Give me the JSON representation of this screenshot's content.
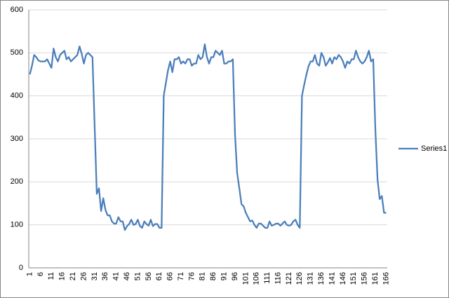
{
  "chart_data": {
    "type": "line",
    "categories": [
      1,
      null,
      null,
      null,
      null,
      6,
      null,
      null,
      null,
      null,
      11,
      null,
      null,
      null,
      null,
      16,
      null,
      null,
      null,
      null,
      21,
      null,
      null,
      null,
      null,
      26,
      null,
      null,
      null,
      null,
      31,
      null,
      null,
      null,
      null,
      36,
      null,
      null,
      null,
      null,
      41,
      null,
      null,
      null,
      null,
      46,
      null,
      null,
      null,
      null,
      51,
      null,
      null,
      null,
      null,
      56,
      null,
      null,
      null,
      null,
      61,
      null,
      null,
      null,
      null,
      66,
      null,
      null,
      null,
      null,
      71,
      null,
      null,
      null,
      null,
      76,
      null,
      null,
      null,
      null,
      81,
      null,
      null,
      null,
      null,
      86,
      null,
      null,
      null,
      null,
      91,
      null,
      null,
      null,
      null,
      96,
      null,
      null,
      null,
      null,
      101,
      null,
      null,
      null,
      null,
      106,
      null,
      null,
      null,
      null,
      111,
      null,
      null,
      null,
      null,
      116,
      null,
      null,
      null,
      null,
      121,
      null,
      null,
      null,
      null,
      126,
      null,
      null,
      null,
      null,
      131,
      null,
      null,
      null,
      null,
      136,
      null,
      null,
      null,
      null,
      141,
      null,
      null,
      null,
      null,
      146,
      null,
      null,
      null,
      null,
      151,
      null,
      null,
      null,
      null,
      156,
      null,
      null,
      null,
      null,
      161,
      null,
      null,
      null,
      null,
      166
    ],
    "series": [
      {
        "name": "Series1",
        "color": "#4a7ebb",
        "values": [
          450,
          470,
          495,
          490,
          482,
          480,
          480,
          480,
          485,
          475,
          465,
          510,
          490,
          480,
          495,
          500,
          505,
          485,
          490,
          480,
          485,
          490,
          495,
          515,
          498,
          475,
          495,
          500,
          495,
          490,
          330,
          172,
          185,
          132,
          162,
          135,
          122,
          122,
          108,
          103,
          103,
          118,
          108,
          108,
          88,
          97,
          102,
          112,
          100,
          102,
          112,
          97,
          93,
          108,
          102,
          98,
          112,
          97,
          102,
          102,
          93,
          93,
          400,
          430,
          460,
          480,
          455,
          485,
          485,
          490,
          475,
          480,
          475,
          485,
          485,
          470,
          475,
          475,
          495,
          485,
          490,
          520,
          490,
          475,
          490,
          490,
          505,
          500,
          495,
          505,
          475,
          475,
          480,
          480,
          485,
          310,
          220,
          185,
          148,
          143,
          128,
          118,
          108,
          110,
          100,
          93,
          103,
          103,
          98,
          93,
          93,
          108,
          98,
          100,
          103,
          103,
          98,
          103,
          108,
          100,
          98,
          100,
          108,
          112,
          100,
          93,
          400,
          425,
          448,
          468,
          480,
          480,
          495,
          475,
          470,
          500,
          490,
          470,
          478,
          488,
          475,
          490,
          485,
          495,
          490,
          480,
          465,
          480,
          475,
          485,
          485,
          505,
          490,
          480,
          475,
          480,
          490,
          505,
          480,
          485,
          320,
          205,
          160,
          167,
          128,
          128
        ]
      }
    ],
    "ylim": [
      0,
      600
    ],
    "yticks": [
      0,
      100,
      200,
      300,
      400,
      500,
      600
    ],
    "grid": true,
    "legend": "right"
  }
}
